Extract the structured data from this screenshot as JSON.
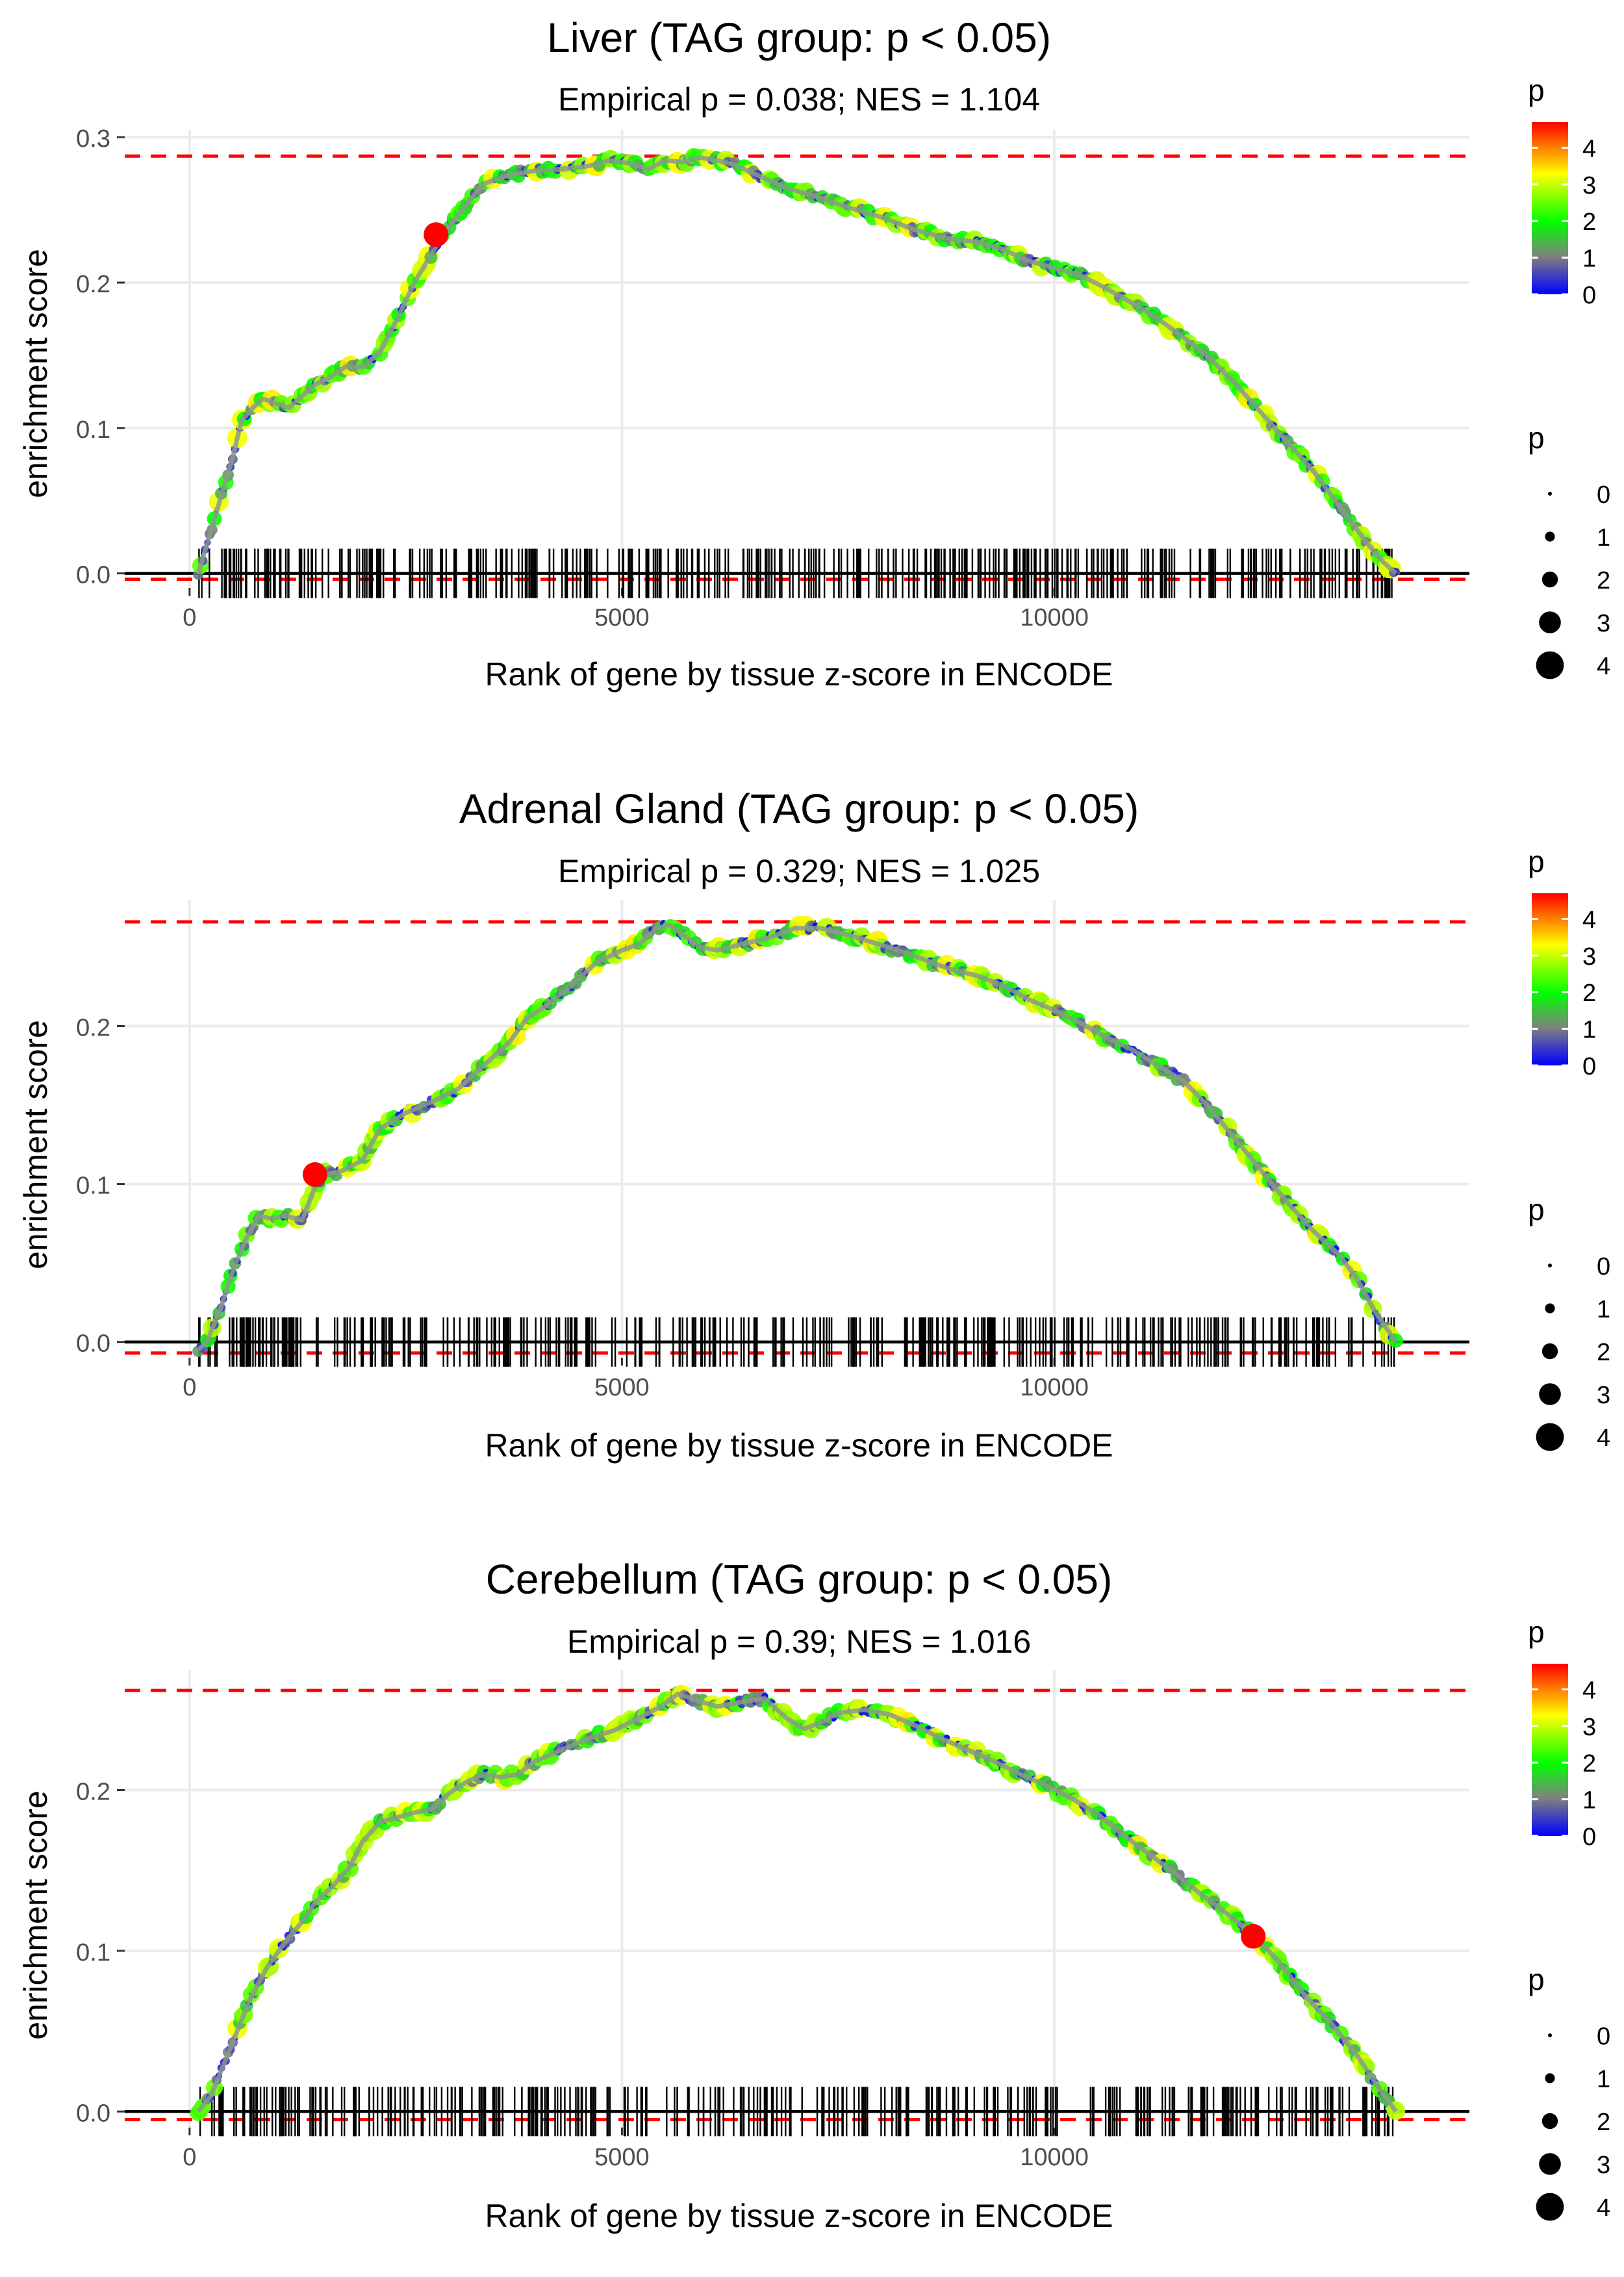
{
  "colors": {
    "grid": "#ebebeb",
    "threshold": "#ff0000",
    "baseline": "#000000",
    "rug": "#000000",
    "highlight": "#ff0000",
    "gradient": [
      "#0000ff",
      "#808080",
      "#00ff00",
      "#ffff00",
      "#ff0000"
    ]
  },
  "chart_data": [
    {
      "type": "line",
      "title": "Liver (TAG group: p < 0.05)",
      "subtitle": "Empirical p = 0.038; NES = 1.104",
      "xlabel": "Rank of gene by tissue z-score in ENCODE",
      "ylabel": "enrichment score",
      "xlim": [
        -750,
        14800
      ],
      "ylim": [
        -0.01,
        0.305
      ],
      "x_ticks": [
        0,
        5000,
        10000
      ],
      "y_ticks": [
        0.0,
        0.1,
        0.2,
        0.3
      ],
      "y_tick_labels": [
        "0.0",
        "0.1",
        "0.2",
        "0.3"
      ],
      "threshold_upper": 0.287,
      "threshold_lower": -0.004,
      "curve": [
        [
          100,
          0
        ],
        [
          200,
          0.02
        ],
        [
          350,
          0.05
        ],
        [
          500,
          0.08
        ],
        [
          600,
          0.105
        ],
        [
          750,
          0.115
        ],
        [
          850,
          0.12
        ],
        [
          1000,
          0.117
        ],
        [
          1150,
          0.114
        ],
        [
          1300,
          0.122
        ],
        [
          1450,
          0.13
        ],
        [
          1600,
          0.134
        ],
        [
          1800,
          0.142
        ],
        [
          2000,
          0.142
        ],
        [
          2200,
          0.152
        ],
        [
          2400,
          0.175
        ],
        [
          2600,
          0.2
        ],
        [
          2800,
          0.22
        ],
        [
          2950,
          0.234
        ],
        [
          3150,
          0.25
        ],
        [
          3400,
          0.268
        ],
        [
          3700,
          0.274
        ],
        [
          4000,
          0.277
        ],
        [
          4300,
          0.278
        ],
        [
          4600,
          0.28
        ],
        [
          4850,
          0.284
        ],
        [
          5100,
          0.282
        ],
        [
          5300,
          0.278
        ],
        [
          5500,
          0.284
        ],
        [
          5700,
          0.283
        ],
        [
          5900,
          0.286
        ],
        [
          6100,
          0.284
        ],
        [
          6300,
          0.281
        ],
        [
          6600,
          0.273
        ],
        [
          6900,
          0.265
        ],
        [
          7200,
          0.26
        ],
        [
          7600,
          0.252
        ],
        [
          8000,
          0.245
        ],
        [
          8400,
          0.236
        ],
        [
          8800,
          0.23
        ],
        [
          9100,
          0.228
        ],
        [
          9400,
          0.223
        ],
        [
          9700,
          0.215
        ],
        [
          10000,
          0.21
        ],
        [
          10300,
          0.205
        ],
        [
          10600,
          0.196
        ],
        [
          10900,
          0.186
        ],
        [
          11200,
          0.175
        ],
        [
          11500,
          0.162
        ],
        [
          11800,
          0.148
        ],
        [
          12100,
          0.13
        ],
        [
          12400,
          0.11
        ],
        [
          12700,
          0.09
        ],
        [
          13000,
          0.07
        ],
        [
          13300,
          0.046
        ],
        [
          13600,
          0.022
        ],
        [
          13800,
          0.008
        ],
        [
          13950,
          0
        ]
      ],
      "highlight": {
        "x": 2850,
        "y": 0.233
      },
      "rug_range": [
        100,
        13950
      ],
      "rug_count": 380,
      "rug_seed": 11,
      "color_legend": {
        "title": "p",
        "ticks": [
          0,
          1,
          2,
          3,
          4
        ],
        "max": 4.7
      },
      "size_legend": {
        "title": "p",
        "values": [
          0,
          1,
          2,
          3,
          4
        ]
      }
    },
    {
      "type": "line",
      "title": "Adrenal Gland (TAG group: p < 0.05)",
      "subtitle": "Empirical p = 0.329; NES = 1.025",
      "xlabel": "Rank of gene by tissue z-score in ENCODE",
      "ylabel": "enrichment score",
      "xlim": [
        -750,
        14800
      ],
      "ylim": [
        -0.01,
        0.28
      ],
      "x_ticks": [
        0,
        5000,
        10000
      ],
      "y_ticks": [
        0.0,
        0.1,
        0.2
      ],
      "y_tick_labels": [
        "0.0",
        "0.1",
        "0.2"
      ],
      "threshold_upper": 0.266,
      "threshold_lower": -0.007,
      "curve": [
        [
          100,
          -0.005
        ],
        [
          200,
          0
        ],
        [
          350,
          0.02
        ],
        [
          500,
          0.045
        ],
        [
          650,
          0.065
        ],
        [
          800,
          0.08
        ],
        [
          950,
          0.078
        ],
        [
          1100,
          0.08
        ],
        [
          1300,
          0.077
        ],
        [
          1450,
          0.098
        ],
        [
          1550,
          0.106
        ],
        [
          1750,
          0.108
        ],
        [
          2000,
          0.115
        ],
        [
          2200,
          0.135
        ],
        [
          2500,
          0.145
        ],
        [
          2800,
          0.152
        ],
        [
          3100,
          0.16
        ],
        [
          3400,
          0.175
        ],
        [
          3700,
          0.19
        ],
        [
          3900,
          0.205
        ],
        [
          4100,
          0.212
        ],
        [
          4400,
          0.225
        ],
        [
          4700,
          0.24
        ],
        [
          5000,
          0.248
        ],
        [
          5200,
          0.252
        ],
        [
          5400,
          0.262
        ],
        [
          5550,
          0.264
        ],
        [
          5700,
          0.258
        ],
        [
          5900,
          0.25
        ],
        [
          6100,
          0.248
        ],
        [
          6400,
          0.252
        ],
        [
          6700,
          0.256
        ],
        [
          7000,
          0.262
        ],
        [
          7300,
          0.262
        ],
        [
          7600,
          0.258
        ],
        [
          7900,
          0.253
        ],
        [
          8200,
          0.248
        ],
        [
          8500,
          0.242
        ],
        [
          8800,
          0.236
        ],
        [
          9100,
          0.232
        ],
        [
          9400,
          0.226
        ],
        [
          9700,
          0.217
        ],
        [
          10000,
          0.21
        ],
        [
          10300,
          0.202
        ],
        [
          10600,
          0.193
        ],
        [
          10900,
          0.185
        ],
        [
          11200,
          0.175
        ],
        [
          11500,
          0.165
        ],
        [
          11800,
          0.148
        ],
        [
          12100,
          0.128
        ],
        [
          12400,
          0.108
        ],
        [
          12700,
          0.088
        ],
        [
          13000,
          0.07
        ],
        [
          13300,
          0.055
        ],
        [
          13500,
          0.04
        ],
        [
          13700,
          0.02
        ],
        [
          13850,
          0.008
        ],
        [
          13950,
          0
        ]
      ],
      "highlight": {
        "x": 1450,
        "y": 0.106
      },
      "rug_range": [
        100,
        13950
      ],
      "rug_count": 370,
      "rug_seed": 23,
      "color_legend": {
        "title": "p",
        "ticks": [
          0,
          1,
          2,
          3,
          4
        ],
        "max": 4.7
      },
      "size_legend": {
        "title": "p",
        "values": [
          0,
          1,
          2,
          3,
          4
        ]
      }
    },
    {
      "type": "line",
      "title": "Cerebellum (TAG group: p < 0.05)",
      "subtitle": "Empirical p = 0.39; NES = 1.016",
      "xlabel": "Rank of gene by tissue z-score in ENCODE",
      "ylabel": "enrichment score",
      "xlim": [
        -750,
        14800
      ],
      "ylim": [
        -0.01,
        0.275
      ],
      "x_ticks": [
        0,
        5000,
        10000
      ],
      "y_ticks": [
        0.0,
        0.1,
        0.2
      ],
      "y_tick_labels": [
        "0.0",
        "0.1",
        "0.2"
      ],
      "threshold_upper": 0.262,
      "threshold_lower": -0.005,
      "curve": [
        [
          100,
          0
        ],
        [
          250,
          0.01
        ],
        [
          400,
          0.03
        ],
        [
          550,
          0.05
        ],
        [
          700,
          0.07
        ],
        [
          900,
          0.09
        ],
        [
          1100,
          0.105
        ],
        [
          1300,
          0.118
        ],
        [
          1450,
          0.13
        ],
        [
          1650,
          0.14
        ],
        [
          1850,
          0.152
        ],
        [
          2000,
          0.168
        ],
        [
          2200,
          0.18
        ],
        [
          2400,
          0.183
        ],
        [
          2600,
          0.186
        ],
        [
          2800,
          0.188
        ],
        [
          3000,
          0.198
        ],
        [
          3200,
          0.205
        ],
        [
          3400,
          0.21
        ],
        [
          3600,
          0.208
        ],
        [
          3800,
          0.21
        ],
        [
          4000,
          0.218
        ],
        [
          4300,
          0.225
        ],
        [
          4600,
          0.232
        ],
        [
          4900,
          0.237
        ],
        [
          5200,
          0.245
        ],
        [
          5450,
          0.252
        ],
        [
          5650,
          0.26
        ],
        [
          5850,
          0.256
        ],
        [
          6100,
          0.252
        ],
        [
          6400,
          0.255
        ],
        [
          6650,
          0.257
        ],
        [
          6900,
          0.245
        ],
        [
          7100,
          0.238
        ],
        [
          7300,
          0.242
        ],
        [
          7500,
          0.248
        ],
        [
          7800,
          0.25
        ],
        [
          8100,
          0.247
        ],
        [
          8400,
          0.24
        ],
        [
          8700,
          0.232
        ],
        [
          9000,
          0.225
        ],
        [
          9300,
          0.218
        ],
        [
          9600,
          0.21
        ],
        [
          9900,
          0.203
        ],
        [
          10200,
          0.195
        ],
        [
          10500,
          0.185
        ],
        [
          10800,
          0.172
        ],
        [
          11100,
          0.16
        ],
        [
          11400,
          0.148
        ],
        [
          11700,
          0.135
        ],
        [
          12000,
          0.123
        ],
        [
          12300,
          0.11
        ],
        [
          12600,
          0.093
        ],
        [
          12900,
          0.072
        ],
        [
          13200,
          0.055
        ],
        [
          13500,
          0.035
        ],
        [
          13750,
          0.015
        ],
        [
          13950,
          0
        ]
      ],
      "highlight": {
        "x": 12300,
        "y": 0.109
      },
      "rug_range": [
        100,
        13950
      ],
      "rug_count": 360,
      "rug_seed": 37,
      "color_legend": {
        "title": "p",
        "ticks": [
          0,
          1,
          2,
          3,
          4
        ],
        "max": 4.7
      },
      "size_legend": {
        "title": "p",
        "values": [
          0,
          1,
          2,
          3,
          4
        ]
      }
    }
  ]
}
